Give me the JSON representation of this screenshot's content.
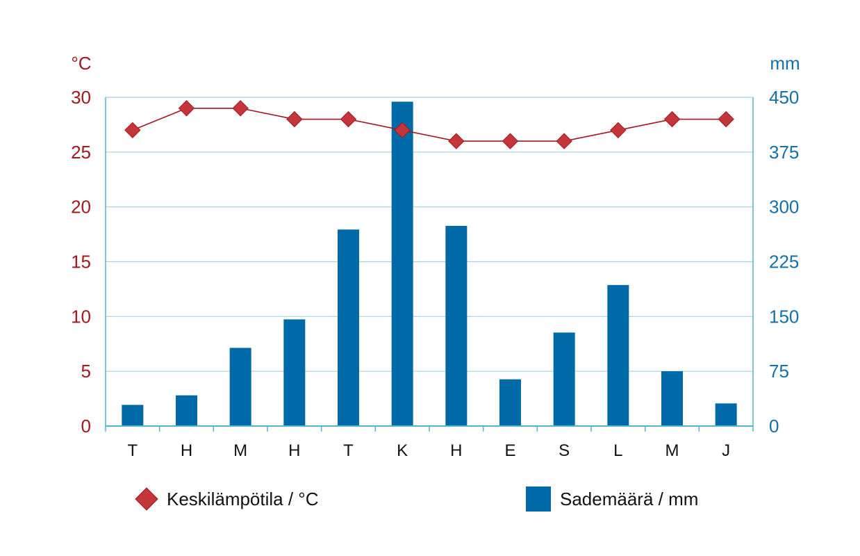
{
  "chart_data": {
    "type": "bar",
    "categories": [
      "T",
      "H",
      "M",
      "H",
      "T",
      "K",
      "H",
      "E",
      "S",
      "L",
      "M",
      "J"
    ],
    "series": [
      {
        "name": "Sademäärä / mm",
        "type": "bar",
        "axis": "right",
        "values": [
          29,
          42,
          107,
          146,
          269,
          444,
          274,
          64,
          128,
          193,
          75,
          31
        ]
      },
      {
        "name": "Keskilämpötila / °C",
        "type": "line",
        "axis": "left",
        "values": [
          27,
          29,
          29,
          28,
          28,
          27,
          26,
          26,
          26,
          27,
          28,
          28
        ]
      }
    ],
    "left_axis": {
      "unit_label": "°C",
      "ylim": [
        0,
        30
      ],
      "ticks": [
        "0",
        "5",
        "10",
        "15",
        "20",
        "25",
        "30"
      ]
    },
    "right_axis": {
      "unit_label": "mm",
      "ylim": [
        0,
        450
      ],
      "ticks": [
        "0",
        "75",
        "150",
        "225",
        "300",
        "375",
        "450"
      ]
    },
    "grid": true,
    "legend": {
      "placement": "bottom",
      "items": [
        {
          "label": "Keskilämpötila / °C",
          "marker": "diamond"
        },
        {
          "label": "Sademäärä / mm",
          "marker": "square"
        }
      ]
    },
    "colors": {
      "bar": "#0069a8",
      "line": "#a3171e",
      "marker": "#c3373a",
      "grid": "#9fd3e3",
      "axis": "#54b3d1",
      "left_text": "#a3171e",
      "right_text": "#1470a8"
    }
  }
}
